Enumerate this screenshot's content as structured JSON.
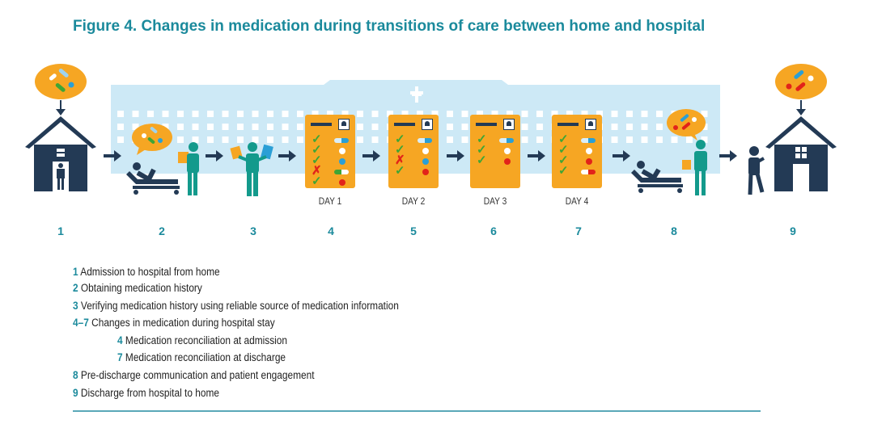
{
  "title": "Figure 4. Changes in medication during transitions of care between home and hospital",
  "colors": {
    "accent": "#1b8a9c",
    "navy": "#233a55",
    "orange": "#f6a623",
    "hospital": "#cde9f6",
    "teal": "#139a8c"
  },
  "steps": [
    "1",
    "2",
    "3",
    "4",
    "5",
    "6",
    "7",
    "8",
    "9"
  ],
  "days": [
    "DAY 1",
    "DAY 2",
    "DAY 3",
    "DAY 4"
  ],
  "cards": [
    {
      "rows": [
        [
          "check",
          "capsule-blue"
        ],
        [
          "check",
          "round-white"
        ],
        [
          "check",
          "round-blue"
        ],
        [
          "cross",
          "capsule-green"
        ],
        [
          "check",
          "round-red"
        ]
      ]
    },
    {
      "rows": [
        [
          "check",
          "capsule-blue"
        ],
        [
          "check",
          "round-white"
        ],
        [
          "cross",
          "round-blue"
        ],
        [
          "check",
          "round-red"
        ]
      ]
    },
    {
      "rows": [
        [
          "check",
          "capsule-blue"
        ],
        [
          "check",
          "round-white"
        ],
        [
          "check",
          "round-red"
        ]
      ]
    },
    {
      "rows": [
        [
          "check",
          "capsule-blue"
        ],
        [
          "check",
          "round-white"
        ],
        [
          "check",
          "round-red"
        ],
        [
          "check",
          "capsule-red"
        ]
      ]
    }
  ],
  "legend": [
    {
      "num": "1",
      "text": "Admission to hospital from home",
      "indent": false
    },
    {
      "num": "2",
      "text": "Obtaining medication history",
      "indent": false
    },
    {
      "num": "3",
      "text": "Verifying medication history using reliable source of medication information",
      "indent": false
    },
    {
      "num": "4–7",
      "text": "Changes in medication during hospital stay",
      "indent": false
    },
    {
      "num": "4",
      "text": "Medication reconciliation at admission",
      "indent": true
    },
    {
      "num": "7",
      "text": "Medication reconciliation at discharge",
      "indent": true
    },
    {
      "num": "8",
      "text": "Pre-discharge communication and patient engagement",
      "indent": false
    },
    {
      "num": "9",
      "text": "Discharge from hospital to home",
      "indent": false
    }
  ]
}
